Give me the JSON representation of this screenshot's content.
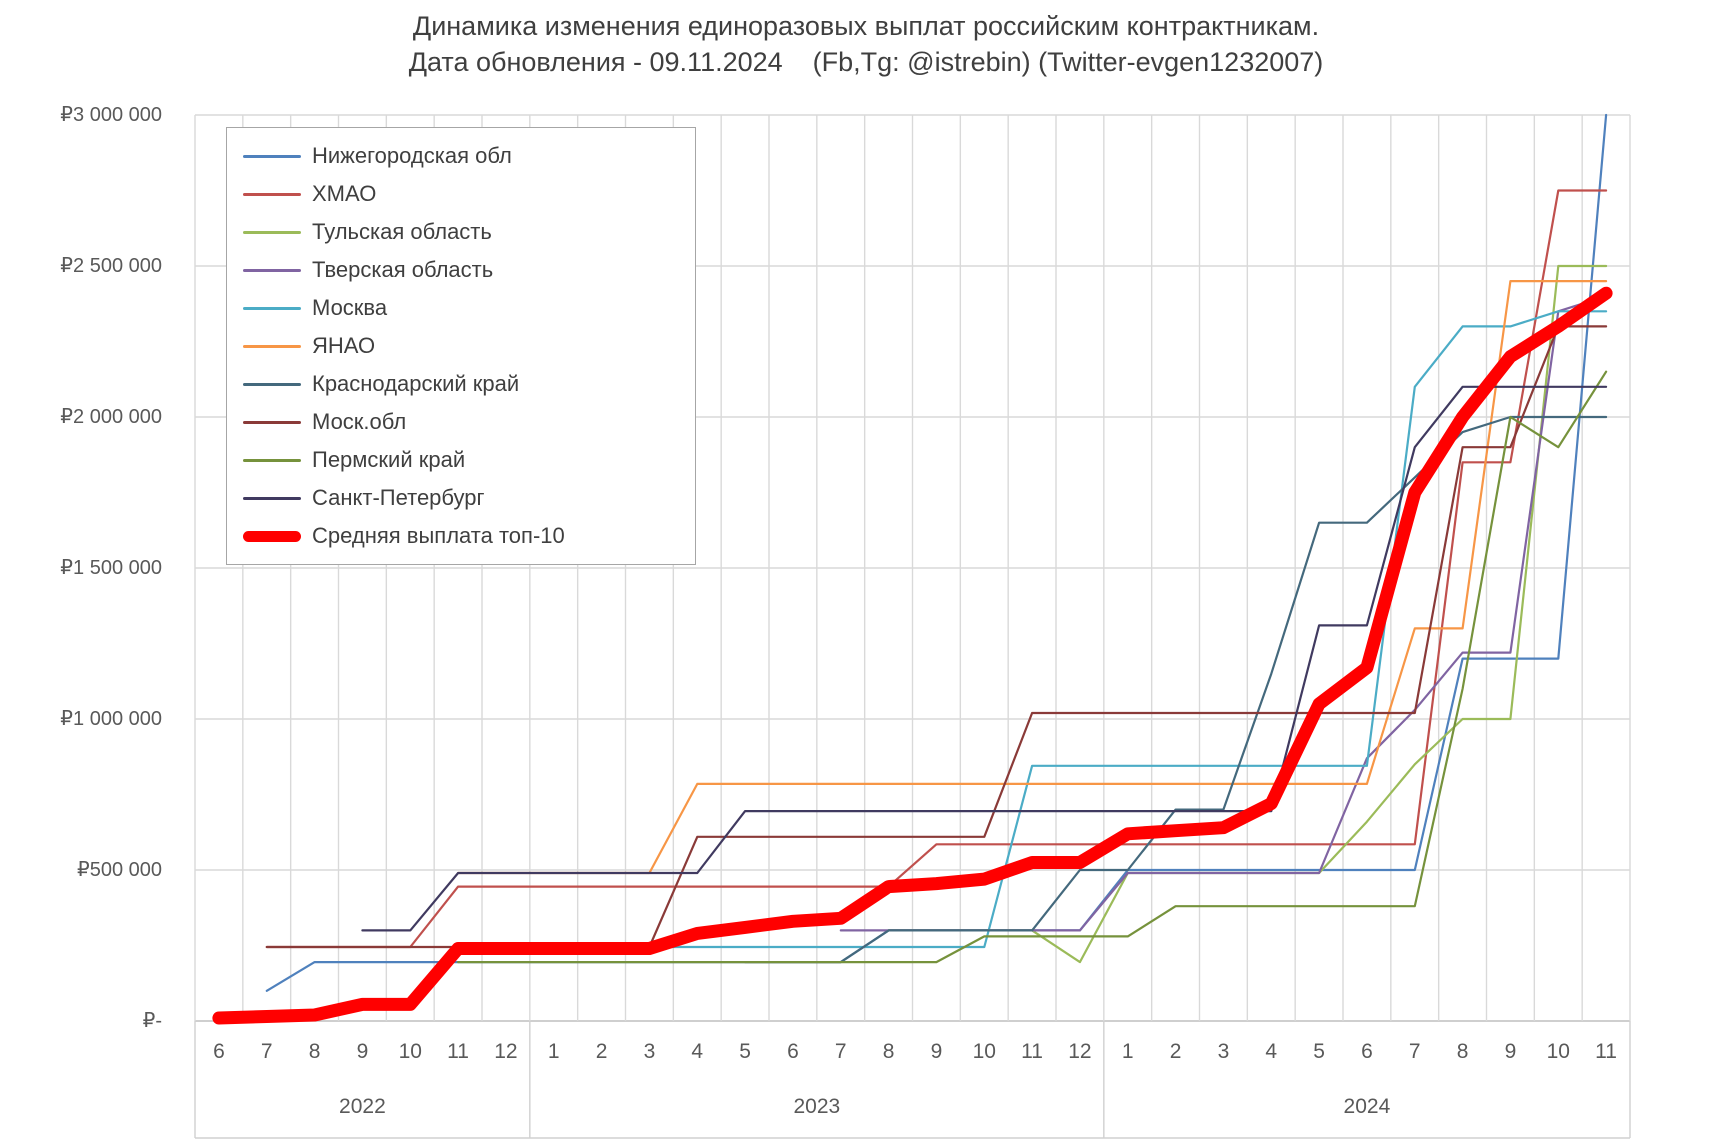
{
  "title": {
    "line1": "Динамика изменения единоразовых выплат российским контрактникам.",
    "line2": "Дата обновления - 09.11.2024    (Fb,Tg: @istrebin) (Twitter-evgen1232007)"
  },
  "chart_data": {
    "type": "line",
    "grid": true,
    "legend_position": "top-left",
    "y_axis": {
      "min": 0,
      "max": 3000000,
      "step": 500000,
      "tick_labels": [
        "₽3 000 000",
        "₽2 500 000",
        "₽2 000 000",
        "₽1 500 000",
        "₽1 000 000",
        "₽500 000",
        "₽-"
      ]
    },
    "x_axis": {
      "months": [
        6,
        7,
        8,
        9,
        10,
        11,
        12,
        1,
        2,
        3,
        4,
        5,
        6,
        7,
        8,
        9,
        10,
        11,
        12,
        1,
        2,
        3,
        4,
        5,
        6,
        7,
        8,
        9,
        10,
        11
      ],
      "year_groups": [
        {
          "label": "2022",
          "months": 7
        },
        {
          "label": "2023",
          "months": 12
        },
        {
          "label": "2024",
          "months": 11
        }
      ]
    },
    "series": [
      {
        "name": "Нижегородская обл",
        "color": "#4F81BD",
        "width": 2.2,
        "values": [
          null,
          100000,
          195000,
          195000,
          195000,
          195000,
          195000,
          195000,
          195000,
          195000,
          195000,
          195000,
          195000,
          195000,
          300000,
          300000,
          300000,
          300000,
          300000,
          500000,
          500000,
          500000,
          500000,
          500000,
          500000,
          500000,
          1200000,
          1200000,
          1200000,
          3000000
        ]
      },
      {
        "name": "ХМАО",
        "color": "#C0504D",
        "width": 2.2,
        "values": [
          null,
          245000,
          245000,
          245000,
          245000,
          445000,
          445000,
          445000,
          445000,
          445000,
          445000,
          445000,
          445000,
          445000,
          445000,
          585000,
          585000,
          585000,
          585000,
          585000,
          585000,
          585000,
          585000,
          585000,
          585000,
          585000,
          1850000,
          1850000,
          2750000,
          2750000
        ]
      },
      {
        "name": "Тульская область",
        "color": "#9BBB59",
        "width": 2.2,
        "values": [
          null,
          null,
          null,
          null,
          null,
          null,
          null,
          null,
          null,
          null,
          null,
          null,
          null,
          null,
          300000,
          300000,
          300000,
          300000,
          195000,
          490000,
          490000,
          490000,
          490000,
          490000,
          660000,
          850000,
          1000000,
          1000000,
          2500000,
          2500000
        ]
      },
      {
        "name": "Тверская область",
        "color": "#8064A2",
        "width": 2.2,
        "values": [
          null,
          null,
          null,
          null,
          null,
          null,
          null,
          null,
          null,
          null,
          null,
          null,
          null,
          300000,
          300000,
          300000,
          300000,
          300000,
          300000,
          490000,
          490000,
          490000,
          490000,
          490000,
          870000,
          1030000,
          1220000,
          1220000,
          2350000,
          2400000
        ]
      },
      {
        "name": "Москва",
        "color": "#4BACC6",
        "width": 2.2,
        "values": [
          null,
          null,
          null,
          null,
          null,
          null,
          null,
          null,
          null,
          245000,
          245000,
          245000,
          245000,
          245000,
          245000,
          245000,
          245000,
          845000,
          845000,
          845000,
          845000,
          845000,
          845000,
          845000,
          845000,
          2100000,
          2300000,
          2300000,
          2350000,
          2350000
        ]
      },
      {
        "name": "ЯНАО",
        "color": "#F79646",
        "width": 2.2,
        "values": [
          null,
          null,
          null,
          null,
          null,
          490000,
          490000,
          490000,
          490000,
          490000,
          785000,
          785000,
          785000,
          785000,
          785000,
          785000,
          785000,
          785000,
          785000,
          785000,
          785000,
          785000,
          785000,
          785000,
          785000,
          1300000,
          1300000,
          2450000,
          2450000,
          2450000
        ]
      },
      {
        "name": "Краснодарский край",
        "color": "#44697D",
        "width": 2.2,
        "values": [
          null,
          null,
          null,
          null,
          null,
          null,
          null,
          null,
          null,
          null,
          null,
          195000,
          195000,
          195000,
          300000,
          300000,
          300000,
          300000,
          500000,
          500000,
          700000,
          700000,
          1150000,
          1650000,
          1650000,
          1800000,
          1950000,
          2000000,
          2000000,
          2000000
        ]
      },
      {
        "name": "Моск.обл",
        "color": "#8A3A38",
        "width": 2.2,
        "values": [
          null,
          245000,
          245000,
          245000,
          245000,
          245000,
          245000,
          245000,
          245000,
          245000,
          610000,
          610000,
          610000,
          610000,
          610000,
          610000,
          610000,
          1020000,
          1020000,
          1020000,
          1020000,
          1020000,
          1020000,
          1020000,
          1020000,
          1020000,
          1900000,
          1900000,
          2300000,
          2300000
        ]
      },
      {
        "name": "Пермский край",
        "color": "#76923C",
        "width": 2.2,
        "values": [
          null,
          null,
          null,
          null,
          null,
          195000,
          195000,
          195000,
          195000,
          195000,
          195000,
          195000,
          195000,
          195000,
          195000,
          195000,
          280000,
          280000,
          280000,
          280000,
          380000,
          380000,
          380000,
          380000,
          380000,
          380000,
          1100000,
          2000000,
          1900000,
          2150000
        ]
      },
      {
        "name": "Санкт-Петербург",
        "color": "#403A60",
        "width": 2.2,
        "values": [
          null,
          null,
          null,
          300000,
          300000,
          490000,
          490000,
          490000,
          490000,
          490000,
          490000,
          695000,
          695000,
          695000,
          695000,
          695000,
          695000,
          695000,
          695000,
          695000,
          695000,
          695000,
          695000,
          1310000,
          1310000,
          1900000,
          2100000,
          2100000,
          2100000,
          2100000
        ]
      },
      {
        "name": "Средняя выплата топ-10",
        "color": "#FF0000",
        "width": 13,
        "values": [
          10000,
          15000,
          20000,
          55000,
          55000,
          240000,
          240000,
          240000,
          240000,
          240000,
          290000,
          310000,
          330000,
          340000,
          445000,
          455000,
          470000,
          525000,
          525000,
          620000,
          630000,
          640000,
          720000,
          1050000,
          1170000,
          1750000,
          2000000,
          2200000,
          2300000,
          2410000
        ]
      }
    ]
  }
}
